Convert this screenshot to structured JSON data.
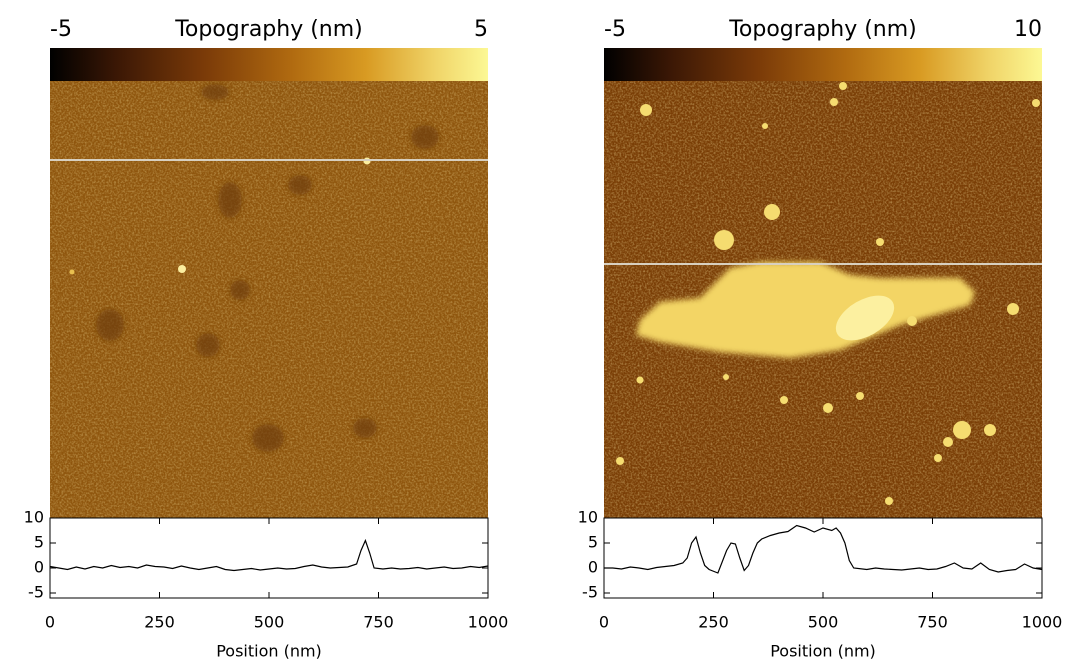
{
  "chart_data": [
    {
      "type": "line",
      "colorbar_label": "Topography (nm)",
      "colorbar_min": -5,
      "colorbar_max": 5,
      "xlabel": "Position (nm)",
      "xlim": [
        0,
        1000
      ],
      "xticks": [
        0,
        250,
        500,
        750,
        1000
      ],
      "ylim": [
        -6,
        10
      ],
      "yticks": [
        10,
        5,
        0,
        -5
      ],
      "color": "#000000",
      "x": [
        0,
        20,
        40,
        60,
        80,
        100,
        120,
        140,
        160,
        180,
        200,
        220,
        240,
        260,
        280,
        300,
        320,
        340,
        360,
        380,
        400,
        420,
        440,
        460,
        480,
        500,
        520,
        540,
        560,
        580,
        600,
        620,
        640,
        660,
        680,
        700,
        710,
        720,
        730,
        740,
        760,
        780,
        800,
        820,
        840,
        860,
        880,
        900,
        920,
        940,
        960,
        980,
        1000
      ],
      "values": [
        0.3,
        0,
        -0.3,
        0.2,
        -0.2,
        0.3,
        0,
        0.5,
        0.1,
        0.3,
        0,
        0.6,
        0.3,
        0.2,
        -0.1,
        0.4,
        0,
        -0.3,
        0,
        0.3,
        -0.3,
        -0.5,
        -0.3,
        -0.1,
        -0.4,
        -0.2,
        0,
        -0.2,
        -0.1,
        0.3,
        0.6,
        0.2,
        0,
        0.1,
        0.2,
        0.8,
        3.5,
        5.5,
        3,
        0,
        -0.2,
        0,
        -0.2,
        -0.1,
        0.1,
        -0.2,
        0,
        0.2,
        -0.1,
        0,
        0.3,
        0.1,
        0.4
      ]
    },
    {
      "type": "line",
      "colorbar_label": "Topography (nm)",
      "colorbar_min": -5,
      "colorbar_max": 10,
      "xlabel": "Position (nm)",
      "xlim": [
        0,
        1000
      ],
      "xticks": [
        0,
        250,
        500,
        750,
        1000
      ],
      "ylim": [
        -6,
        10
      ],
      "yticks": [
        10,
        5,
        0,
        -5
      ],
      "color": "#000000",
      "x": [
        0,
        20,
        40,
        60,
        80,
        100,
        120,
        140,
        160,
        180,
        190,
        200,
        210,
        220,
        230,
        240,
        260,
        280,
        290,
        300,
        310,
        320,
        330,
        340,
        350,
        360,
        380,
        400,
        420,
        440,
        460,
        480,
        500,
        520,
        530,
        540,
        550,
        560,
        570,
        600,
        620,
        640,
        660,
        680,
        700,
        720,
        740,
        760,
        780,
        800,
        820,
        840,
        860,
        880,
        900,
        920,
        940,
        960,
        980,
        1000
      ],
      "values": [
        0,
        0,
        -0.2,
        0.2,
        0,
        -0.3,
        0.1,
        0.3,
        0.5,
        1,
        2,
        5,
        6.2,
        3,
        0.5,
        -0.3,
        -1,
        3.5,
        5,
        4.8,
        2,
        -0.5,
        0.5,
        3,
        5,
        5.8,
        6.5,
        7,
        7.3,
        8.5,
        8,
        7.2,
        8,
        7.5,
        8,
        7,
        5,
        1.5,
        0,
        -0.3,
        0,
        -0.2,
        -0.3,
        -0.4,
        -0.2,
        0,
        -0.3,
        -0.2,
        0.3,
        1,
        0,
        -0.2,
        1,
        -0.3,
        -0.8,
        -0.5,
        -0.3,
        0.8,
        0,
        -0.3
      ]
    }
  ]
}
